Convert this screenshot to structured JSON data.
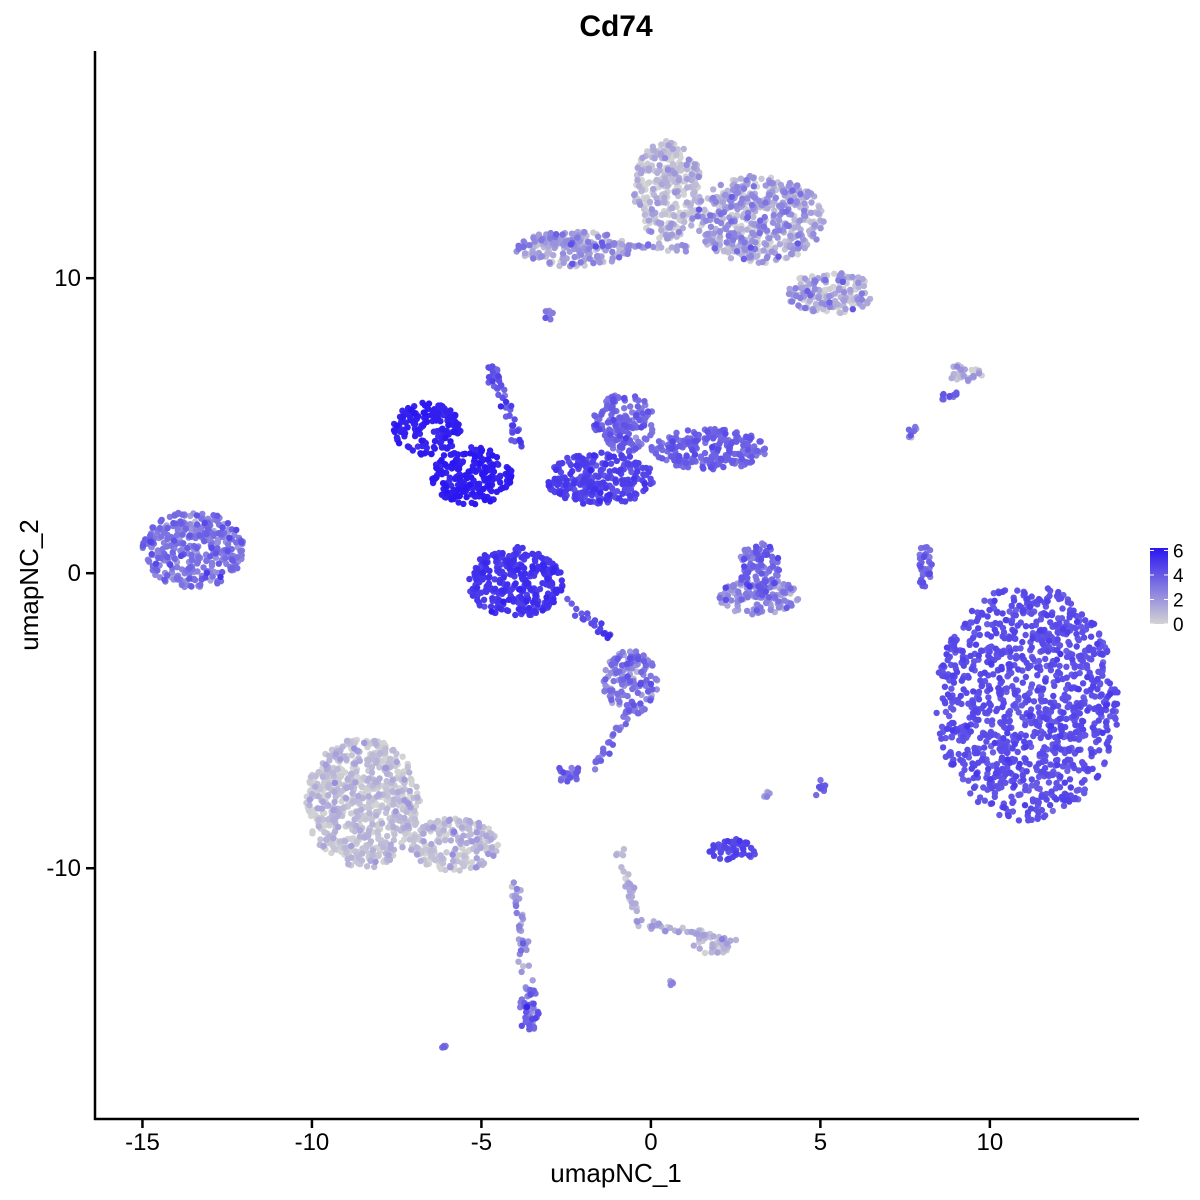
{
  "chart_data": {
    "type": "scatter",
    "title": "Cd74",
    "xlabel": "umapNC_1",
    "ylabel": "umapNC_2",
    "xlim": [
      -16.4,
      14.4
    ],
    "ylim": [
      -18.5,
      17.7
    ],
    "x_ticks": [
      -15,
      -10,
      -5,
      0,
      5,
      10
    ],
    "x_tick_labels": [
      "-15",
      "-10",
      "-5",
      "0",
      "5",
      "10"
    ],
    "y_ticks": [
      -10,
      0,
      10
    ],
    "y_tick_labels": [
      "-10",
      "0",
      "10"
    ],
    "grid": false,
    "legend": {
      "placement": "right",
      "labels": [
        "6",
        "4",
        "2",
        "0"
      ],
      "values": [
        6,
        4,
        2,
        0
      ],
      "range": [
        0,
        6.2
      ]
    },
    "color_scale": {
      "low": "#d3d3d3",
      "high": "#2a16f0"
    },
    "clusters": [
      {
        "center": [
          11.1,
          -4.4
        ],
        "radius": [
          2.7,
          4.0
        ],
        "expression": 4.3,
        "spread": 0.3
      },
      {
        "center": [
          -6.6,
          4.9
        ],
        "radius": [
          1.0,
          0.9
        ],
        "expression": 5.8,
        "spread": 0.2
      },
      {
        "center": [
          -5.3,
          3.3
        ],
        "radius": [
          1.2,
          1.0
        ],
        "expression": 5.9,
        "spread": 0.2
      },
      {
        "center": [
          -4.0,
          -0.3
        ],
        "radius": [
          1.4,
          1.2
        ],
        "expression": 5.1,
        "spread": 0.3
      },
      {
        "center": [
          -1.5,
          3.2
        ],
        "radius": [
          1.6,
          0.9
        ],
        "expression": 4.6,
        "spread": 0.4
      },
      {
        "center": [
          -0.8,
          5.1
        ],
        "radius": [
          0.9,
          1.0
        ],
        "expression": 3.5,
        "spread": 0.5
      },
      {
        "center": [
          1.7,
          4.2
        ],
        "radius": [
          1.7,
          0.7
        ],
        "expression": 3.6,
        "spread": 0.4
      },
      {
        "center": [
          -4.7,
          6.7
        ],
        "radius": [
          0.2,
          0.4
        ],
        "expression": 4.0,
        "spread": 0.4
      },
      {
        "center": [
          -13.5,
          0.8
        ],
        "radius": [
          1.5,
          1.3
        ],
        "expression": 3.0,
        "spread": 0.8
      },
      {
        "center": [
          3.2,
          0.2
        ],
        "radius": [
          0.6,
          0.9
        ],
        "expression": 3.5,
        "spread": 0.6
      },
      {
        "center": [
          3.2,
          -0.8
        ],
        "radius": [
          1.2,
          0.6
        ],
        "expression": 2.2,
        "spread": 0.8
      },
      {
        "center": [
          0.5,
          13.0
        ],
        "radius": [
          1.0,
          1.7
        ],
        "expression": 0.6,
        "spread": 0.8
      },
      {
        "center": [
          3.2,
          12.0
        ],
        "radius": [
          1.9,
          1.5
        ],
        "expression": 1.4,
        "spread": 1.0
      },
      {
        "center": [
          5.3,
          9.5
        ],
        "radius": [
          1.3,
          0.7
        ],
        "expression": 1.2,
        "spread": 1.0
      },
      {
        "center": [
          -2.3,
          11.0
        ],
        "radius": [
          1.7,
          0.6
        ],
        "expression": 1.6,
        "spread": 1.0
      },
      {
        "center": [
          9.2,
          6.8
        ],
        "radius": [
          0.6,
          0.3
        ],
        "expression": 1.0,
        "spread": 0.8
      },
      {
        "center": [
          -8.5,
          -7.8
        ],
        "radius": [
          1.7,
          2.2
        ],
        "expression": 0.4,
        "spread": 0.6
      },
      {
        "center": [
          -5.8,
          -9.2
        ],
        "radius": [
          1.3,
          0.9
        ],
        "expression": 0.6,
        "spread": 0.7
      },
      {
        "center": [
          -0.6,
          -3.7
        ],
        "radius": [
          0.8,
          1.1
        ],
        "expression": 2.6,
        "spread": 0.9
      },
      {
        "center": [
          -2.4,
          -6.8
        ],
        "radius": [
          0.4,
          0.3
        ],
        "expression": 3.5,
        "spread": 0.6
      },
      {
        "center": [
          2.4,
          -9.4
        ],
        "radius": [
          0.7,
          0.4
        ],
        "expression": 4.6,
        "spread": 0.3
      },
      {
        "center": [
          -3.6,
          -14.8
        ],
        "radius": [
          0.3,
          0.8
        ],
        "expression": 3.2,
        "spread": 0.8
      },
      {
        "center": [
          1.8,
          -12.6
        ],
        "radius": [
          0.6,
          0.3
        ],
        "expression": 0.8,
        "spread": 0.7
      },
      {
        "center": [
          5.0,
          -7.3
        ],
        "radius": [
          0.2,
          0.3
        ],
        "expression": 3.6,
        "spread": 0.5
      },
      {
        "center": [
          8.1,
          0.2
        ],
        "radius": [
          0.2,
          0.9
        ],
        "expression": 3.5,
        "spread": 0.6
      },
      {
        "center": [
          7.7,
          4.8
        ],
        "radius": [
          0.2,
          0.2
        ],
        "expression": 2.5,
        "spread": 1.0
      },
      {
        "center": [
          -3.0,
          8.8
        ],
        "radius": [
          0.2,
          0.2
        ],
        "expression": 3.0,
        "spread": 0.8
      },
      {
        "center": [
          8.8,
          6.0
        ],
        "radius": [
          0.3,
          0.2
        ],
        "expression": 3.8,
        "spread": 0.5
      },
      {
        "center": [
          -6.1,
          -16.1
        ],
        "radius": [
          0.1,
          0.1
        ],
        "expression": 3.0,
        "spread": 0.5
      },
      {
        "center": [
          0.6,
          -13.9
        ],
        "radius": [
          0.1,
          0.1
        ],
        "expression": 2.0,
        "spread": 0.6
      },
      {
        "center": [
          3.4,
          -7.5
        ],
        "radius": [
          0.15,
          0.2
        ],
        "expression": 1.8,
        "spread": 0.8
      }
    ],
    "trails": [
      {
        "from": [
          -2.4,
          -1.0
        ],
        "to": [
          -1.2,
          -2.2
        ],
        "expression": 4.4
      },
      {
        "from": [
          -4.6,
          7.0
        ],
        "to": [
          -3.9,
          4.2
        ],
        "expression": 4.2
      },
      {
        "from": [
          -0.6,
          -4.5
        ],
        "to": [
          -1.7,
          -6.6
        ],
        "expression": 3.3
      },
      {
        "from": [
          -0.9,
          -9.4
        ],
        "to": [
          -0.4,
          -11.8
        ],
        "expression": 0.8
      },
      {
        "from": [
          -0.4,
          -11.8
        ],
        "to": [
          2.4,
          -12.5
        ],
        "expression": 1.2
      },
      {
        "from": [
          -4.0,
          -10.6
        ],
        "to": [
          -3.6,
          -14.6
        ],
        "expression": 2.0
      },
      {
        "from": [
          -2.9,
          11.2
        ],
        "to": [
          1.2,
          11.0
        ],
        "expression": 1.8
      }
    ]
  }
}
